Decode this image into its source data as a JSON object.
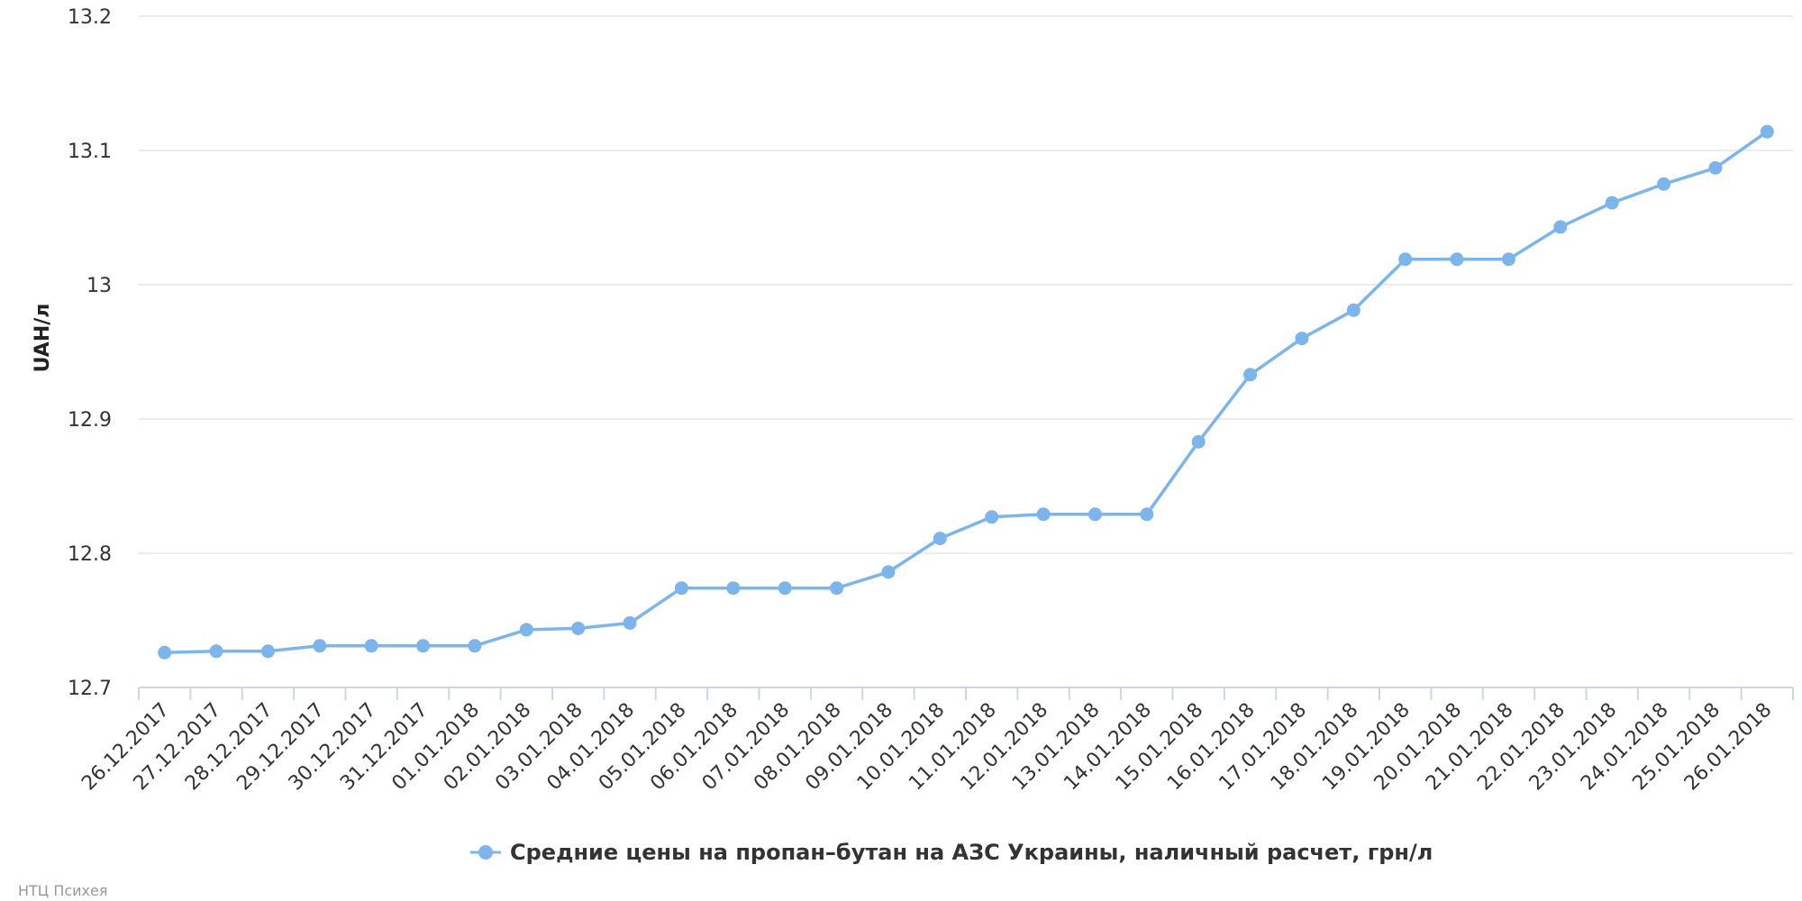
{
  "chart_data": {
    "type": "line",
    "ylabel": "UAH/л",
    "ylim": [
      12.7,
      13.2
    ],
    "yticks": [
      "12.7",
      "12.8",
      "12.9",
      "13",
      "13.1",
      "13.2"
    ],
    "grid": true,
    "legend_position": "bottom-center",
    "categories": [
      "26.12.2017",
      "27.12.2017",
      "28.12.2017",
      "29.12.2017",
      "30.12.2017",
      "31.12.2017",
      "01.01.2018",
      "02.01.2018",
      "03.01.2018",
      "04.01.2018",
      "05.01.2018",
      "06.01.2018",
      "07.01.2018",
      "08.01.2018",
      "09.01.2018",
      "10.01.2018",
      "11.01.2018",
      "12.01.2018",
      "13.01.2018",
      "14.01.2018",
      "15.01.2018",
      "16.01.2018",
      "17.01.2018",
      "18.01.2018",
      "19.01.2018",
      "20.01.2018",
      "21.01.2018",
      "22.01.2018",
      "23.01.2018",
      "24.01.2018",
      "25.01.2018",
      "26.01.2018"
    ],
    "series": [
      {
        "name": "Средние цены на пропан–бутан на АЗС Украины, наличный расчет, грн/л",
        "color": "#7cb5ec",
        "values": [
          12.726,
          12.727,
          12.727,
          12.731,
          12.731,
          12.731,
          12.731,
          12.743,
          12.744,
          12.748,
          12.774,
          12.774,
          12.774,
          12.774,
          12.786,
          12.811,
          12.827,
          12.829,
          12.829,
          12.829,
          12.883,
          12.933,
          12.96,
          12.981,
          13.019,
          13.019,
          13.019,
          13.043,
          13.061,
          13.075,
          13.087,
          13.114
        ]
      }
    ]
  },
  "credits": "НТЦ Психея",
  "colors": {
    "grid": "#e6e6e6",
    "axis": "#ccd6eb",
    "series": "#7cb5ec"
  }
}
